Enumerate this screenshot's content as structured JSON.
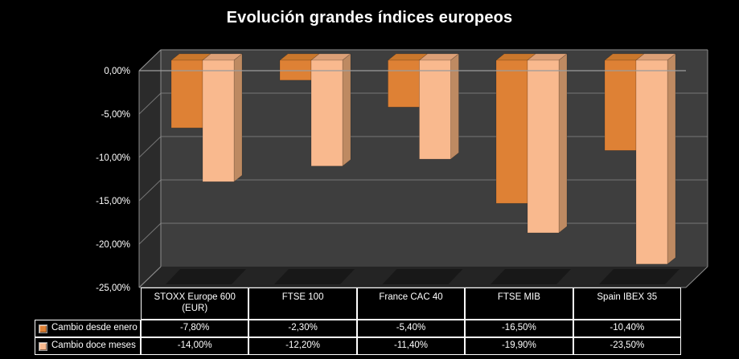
{
  "title": "Evolución grandes índices europeos",
  "chart_data": {
    "type": "bar",
    "projection": "3d",
    "title": "Evolución grandes índices europeos",
    "xlabel": "",
    "ylabel": "",
    "ylim": [
      -25,
      0
    ],
    "grid": true,
    "legend_position": "table-left",
    "categories": [
      "STOXX Europe 600 (EUR)",
      "FTSE 100",
      "France CAC 40",
      "FTSE MIB",
      "Spain IBEX 35"
    ],
    "series": [
      {
        "name": "Cambio desde enero",
        "color": "#DE8135",
        "color_top": "#C9772C",
        "color_side": "#A86018",
        "values": [
          -7.8,
          -2.3,
          -5.4,
          -16.5,
          -10.4
        ],
        "labels": [
          "-7,80%",
          "-2,30%",
          "-5,40%",
          "-16,50%",
          "-10,40%"
        ]
      },
      {
        "name": "Cambio doce meses",
        "color": "#F9B98E",
        "color_top": "#DCA077",
        "color_side": "#BE8A62",
        "values": [
          -14.0,
          -12.2,
          -11.4,
          -19.9,
          -23.5
        ],
        "labels": [
          "-14,00%",
          "-12,20%",
          "-11,40%",
          "-19,90%",
          "-23,50%"
        ]
      }
    ],
    "yticks": [
      {
        "value": 0,
        "label": "0,00%"
      },
      {
        "value": -5,
        "label": "-5,00%"
      },
      {
        "value": -10,
        "label": "-10,00%"
      },
      {
        "value": -15,
        "label": "-15,00%"
      },
      {
        "value": -20,
        "label": "-20,00%"
      },
      {
        "value": -25,
        "label": "-25,00%"
      }
    ]
  },
  "colors": {
    "background": "#000000",
    "back_wall": "#3E3E3E",
    "side_wall": "#2B2B2B",
    "floor": "#242424",
    "shadow": "#161616",
    "gridline": "#757575",
    "edge": "#8C8C8C",
    "zero_line": "#9C9C9C",
    "text": "#FFFFFF",
    "table_border": "#FFFFFF"
  }
}
